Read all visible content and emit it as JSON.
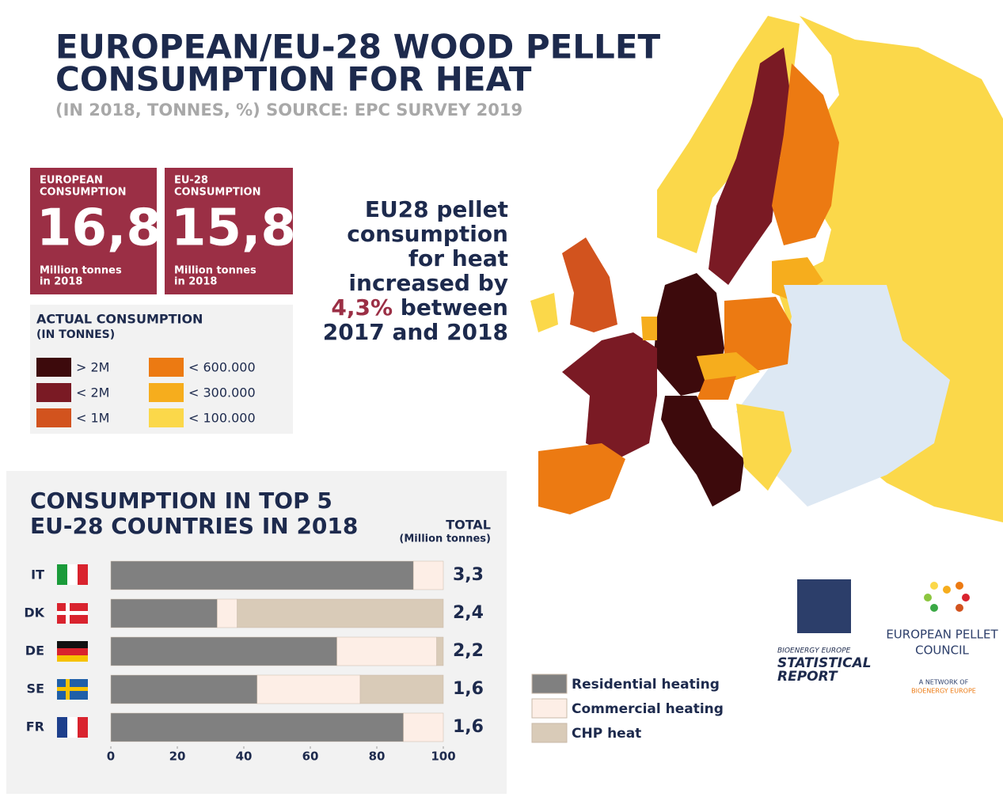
{
  "header": {
    "title_lines": [
      "EUROPEAN/EU-28 WOOD PELLET",
      "CONSUMPTION FOR HEAT"
    ],
    "subtitle": "(IN 2018, TONNES, %) SOURCE: EPC SURVEY 2019"
  },
  "stats": [
    {
      "label_lines": [
        "EUROPEAN",
        "CONSUMPTION"
      ],
      "value": "16,8",
      "unit_lines": [
        "Million tonnes",
        "in 2018"
      ]
    },
    {
      "label_lines": [
        "EU-28",
        "CONSUMPTION"
      ],
      "value": "15,8",
      "unit_lines": [
        "Million tonnes",
        "in 2018"
      ]
    }
  ],
  "map_legend": {
    "title_lines": [
      "ACTUAL CONSUMPTION",
      "(IN TONNES)"
    ],
    "items": [
      {
        "label": "> 2M",
        "color": "#3d0a0c"
      },
      {
        "label": "< 2M",
        "color": "#7a1a24"
      },
      {
        "label": "< 1M",
        "color": "#d2531e"
      },
      {
        "label": "< 600.000",
        "color": "#ec7a12"
      },
      {
        "label": "< 300.000",
        "color": "#f6ad1d"
      },
      {
        "label": "< 100.000",
        "color": "#fbd84a"
      }
    ]
  },
  "note": {
    "lines": [
      "EU28 pellet",
      "consumption",
      "for heat",
      "increased by"
    ],
    "highlight": "4,3%",
    "rest": " between",
    "last": "2017 and 2018"
  },
  "chart_data": {
    "type": "stacked-barh",
    "title_lines": [
      "CONSUMPTION IN TOP 5",
      "EU-28 COUNTRIES IN 2018"
    ],
    "categories": [
      "IT",
      "DK",
      "DE",
      "SE",
      "FR"
    ],
    "series": [
      {
        "name": "Residential heating",
        "color": "#808080",
        "values": [
          91,
          32,
          68,
          44,
          88
        ]
      },
      {
        "name": "Commercial heating",
        "color": "#fdeee6",
        "values": [
          9,
          6,
          30,
          31,
          12
        ]
      },
      {
        "name": "CHP heat",
        "color": "#d9cbb8",
        "values": [
          0,
          62,
          2,
          25,
          0
        ]
      }
    ],
    "xlim": [
      0,
      100
    ],
    "xticks": [
      0,
      20,
      40,
      60,
      80,
      100
    ],
    "totals_header": [
      "TOTAL",
      "(Million tonnes)"
    ],
    "totals": {
      "values": [
        3.3,
        2.4,
        2.2,
        1.6,
        1.6
      ],
      "value_labels": [
        "3,3",
        "2,4",
        "2,2",
        "1,6",
        "1,6"
      ]
    }
  },
  "logos": {
    "bioenergy": [
      "BIOENERGY EUROPE",
      "STATISTICAL",
      "REPORT"
    ],
    "epc": [
      "EUROPEAN PELLET",
      "COUNCIL"
    ],
    "epc_sub": [
      "A NETWORK OF",
      "BIOENERGY EUROPE"
    ]
  }
}
